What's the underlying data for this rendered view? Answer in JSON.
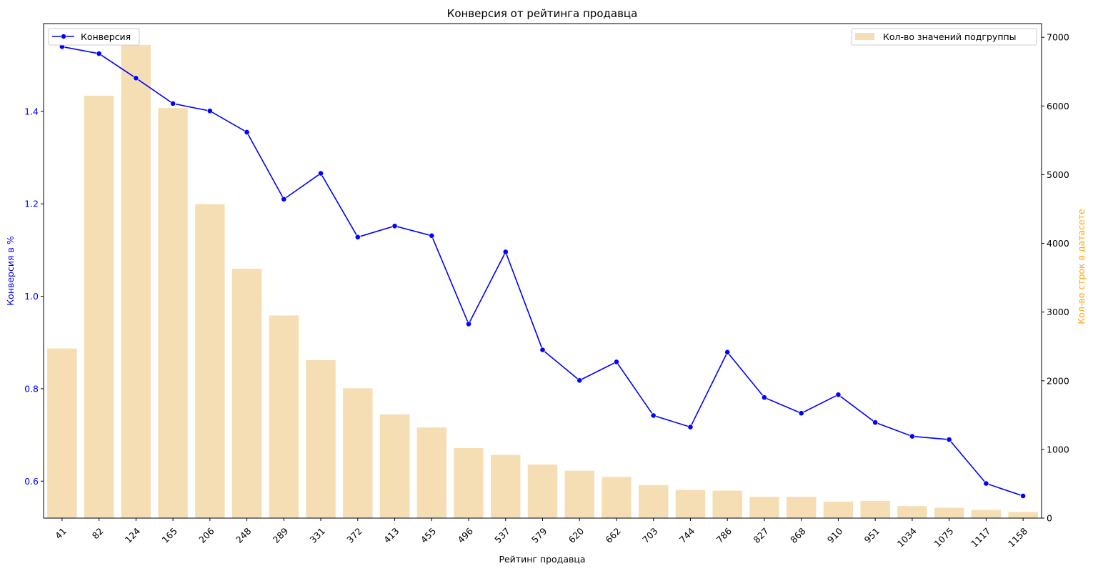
{
  "chart_data": {
    "type": "bar+line",
    "title": "Конверсия от рейтинга продавца",
    "xlabel": "Рейтинг продавца",
    "ylabel_left": "Конверсия в %",
    "ylabel_right": "Кол-во строк в датасете",
    "categories": [
      "41",
      "82",
      "124",
      "165",
      "206",
      "248",
      "289",
      "331",
      "372",
      "413",
      "455",
      "496",
      "537",
      "579",
      "620",
      "662",
      "703",
      "744",
      "786",
      "827",
      "868",
      "910",
      "951",
      "1034",
      "1075",
      "1117",
      "1158"
    ],
    "left_axis": {
      "ylim": [
        0.52,
        1.59
      ],
      "ticks": [
        "0.6",
        "0.8",
        "1.0",
        "1.2",
        "1.4"
      ],
      "color": "#0000ff"
    },
    "right_axis": {
      "ylim": [
        0,
        7200
      ],
      "ticks": [
        "0",
        "1000",
        "2000",
        "3000",
        "4000",
        "5000",
        "6000",
        "7000"
      ],
      "color": "#ffa500"
    },
    "series": [
      {
        "name": "Конверсия",
        "type": "line",
        "axis": "left",
        "color": "#0000ff",
        "values": [
          1.54,
          1.525,
          1.472,
          1.417,
          1.401,
          1.355,
          1.21,
          1.266,
          1.128,
          1.152,
          1.131,
          0.94,
          1.096,
          0.884,
          0.818,
          0.858,
          0.742,
          0.717,
          0.879,
          0.781,
          0.747,
          0.787,
          0.727,
          0.697,
          0.69,
          0.595,
          0.568
        ]
      },
      {
        "name": "Кол-во значений подгруппы",
        "type": "bar",
        "axis": "right",
        "color": "#f5deb3",
        "values": [
          2470,
          6150,
          6890,
          5970,
          4570,
          3630,
          2950,
          2300,
          1890,
          1510,
          1320,
          1020,
          920,
          780,
          690,
          600,
          480,
          410,
          400,
          310,
          310,
          240,
          250,
          175,
          150,
          120,
          90
        ]
      }
    ],
    "legend": [
      {
        "label": "Конверсия",
        "position": "upper-left"
      },
      {
        "label": "Кол-во значений подгруппы",
        "position": "upper-right"
      }
    ]
  }
}
